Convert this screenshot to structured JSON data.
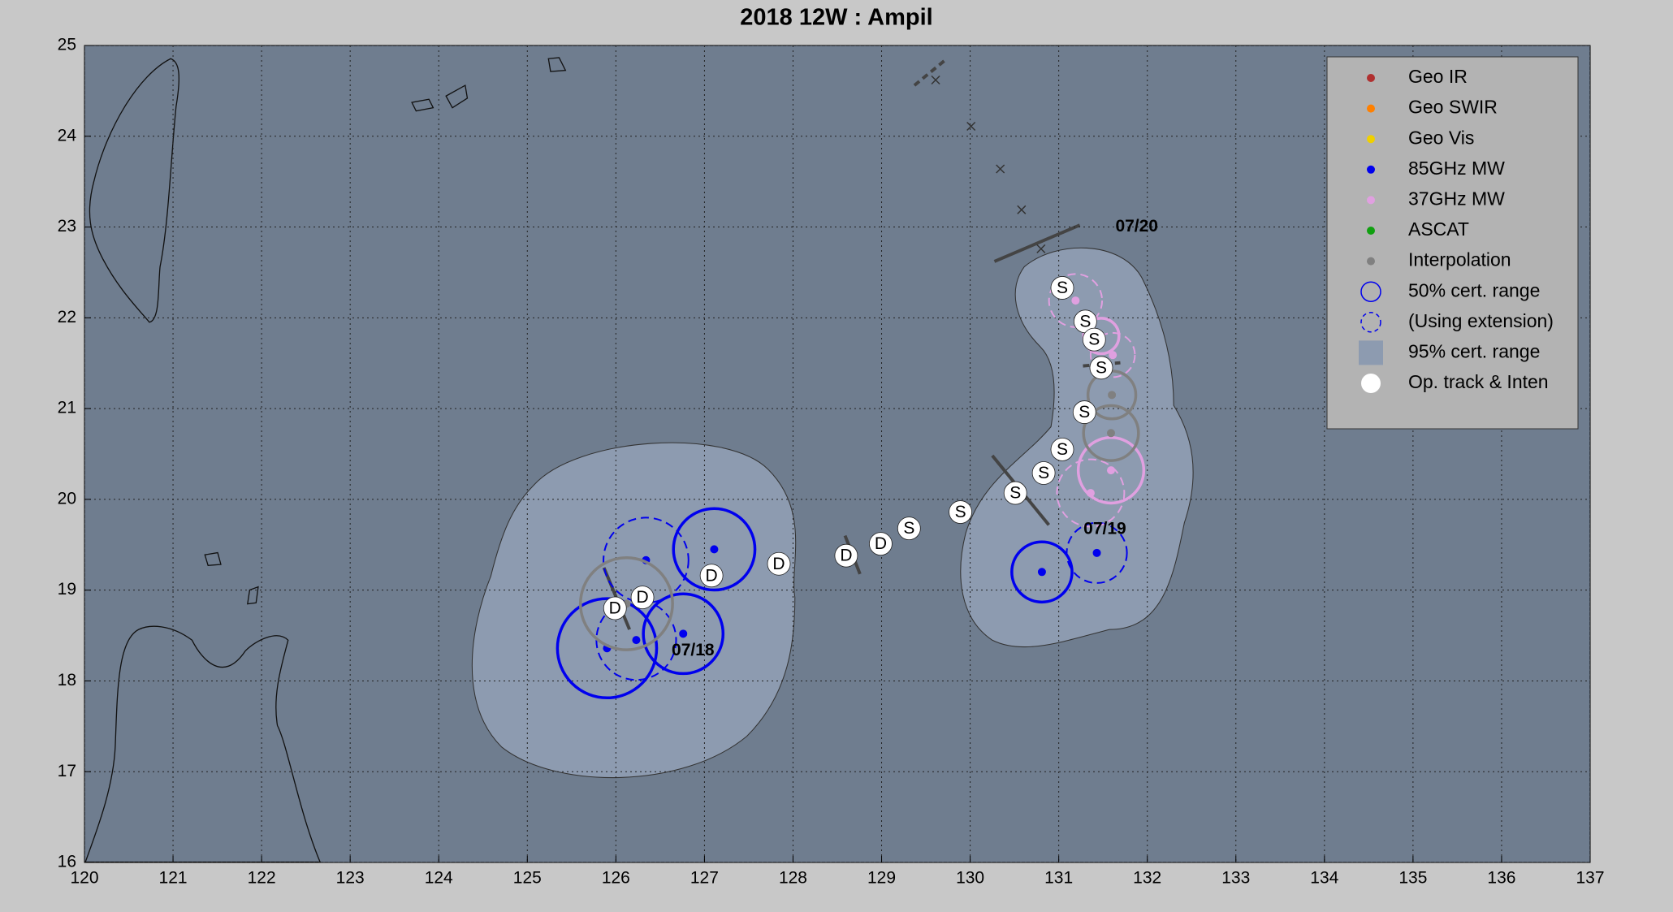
{
  "chart_data": {
    "type": "scatter",
    "title": "2018  12W :  Ampil",
    "xlim": [
      120,
      137
    ],
    "ylim": [
      16,
      25
    ],
    "xticks": [
      120,
      121,
      122,
      123,
      124,
      125,
      126,
      127,
      128,
      129,
      130,
      131,
      132,
      133,
      134,
      135,
      136,
      137
    ],
    "yticks": [
      16,
      17,
      18,
      19,
      20,
      21,
      22,
      23,
      24,
      25
    ],
    "grid": true,
    "legend": "upper right",
    "series": [
      {
        "name": "Geo IR",
        "color": "#b03030",
        "x": [],
        "values": [],
        "radius": [],
        "dashed": []
      },
      {
        "name": "Geo SWIR",
        "color": "#ff8000",
        "x": [],
        "values": [],
        "radius": [],
        "dashed": []
      },
      {
        "name": "Geo Vis",
        "color": "#f0d000",
        "x": [],
        "values": [],
        "radius": [],
        "dashed": []
      },
      {
        "name": "85GHz MW",
        "color": "#0000ee",
        "x": [
          131.43,
          130.81,
          127.11,
          126.34,
          126.76,
          126.23,
          125.9
        ],
        "values": [
          19.41,
          19.2,
          19.45,
          19.33,
          18.52,
          18.45,
          18.36
        ],
        "radius": [
          0.34,
          0.34,
          0.46,
          0.48,
          0.45,
          0.45,
          0.56
        ],
        "dashed": [
          true,
          false,
          false,
          true,
          false,
          true,
          false
        ]
      },
      {
        "name": "37GHz MW",
        "color": "#e0a0e0",
        "x": [
          131.59,
          131.36,
          131.19,
          131.48,
          131.61
        ],
        "values": [
          20.32,
          20.07,
          22.19,
          21.8,
          21.59
        ],
        "radius": [
          0.37,
          0.38,
          0.3,
          0.2,
          0.25
        ],
        "dashed": [
          false,
          true,
          true,
          false,
          true
        ]
      },
      {
        "name": "ASCAT",
        "color": "#10a010",
        "x": [],
        "values": [],
        "radius": [],
        "dashed": []
      },
      {
        "name": "Interpolation",
        "color": "#808080",
        "x": [
          126.12,
          131.59,
          131.6
        ],
        "values": [
          18.85,
          20.73,
          21.15
        ],
        "radius": [
          0.52,
          0.31,
          0.27
        ],
        "dashed": [
          false,
          false,
          false
        ]
      }
    ],
    "range_legend": [
      "50% cert. range",
      "(Using extension)",
      "95% cert. range"
    ],
    "track": {
      "name": "Op. track & Inten",
      "color": "#ffffff",
      "x": [
        131.04,
        131.3,
        131.4,
        131.48,
        131.29,
        131.04,
        130.83,
        130.51,
        129.89,
        129.31,
        128.99,
        128.6,
        127.84,
        127.08,
        126.3,
        125.99
      ],
      "values": [
        22.33,
        21.96,
        21.76,
        21.45,
        20.96,
        20.55,
        20.29,
        20.07,
        19.86,
        19.68,
        19.51,
        19.38,
        19.29,
        19.16,
        18.92,
        18.8
      ],
      "labels": [
        "S",
        "S",
        "S",
        "S",
        "S",
        "S",
        "S",
        "S",
        "S",
        "S",
        "D",
        "D",
        "D",
        "D",
        "D",
        "D"
      ]
    },
    "x_marks": {
      "x": [
        129.61,
        130.01,
        130.34,
        130.58,
        130.8
      ],
      "values": [
        24.62,
        24.11,
        23.64,
        23.19,
        22.76
      ]
    },
    "annotations": [
      {
        "text": "07/20",
        "x": 131.64,
        "y": 23.0
      },
      {
        "text": "07/19",
        "x": 131.28,
        "y": 19.67
      },
      {
        "text": "07/18",
        "x": 126.63,
        "y": 18.33
      }
    ]
  }
}
